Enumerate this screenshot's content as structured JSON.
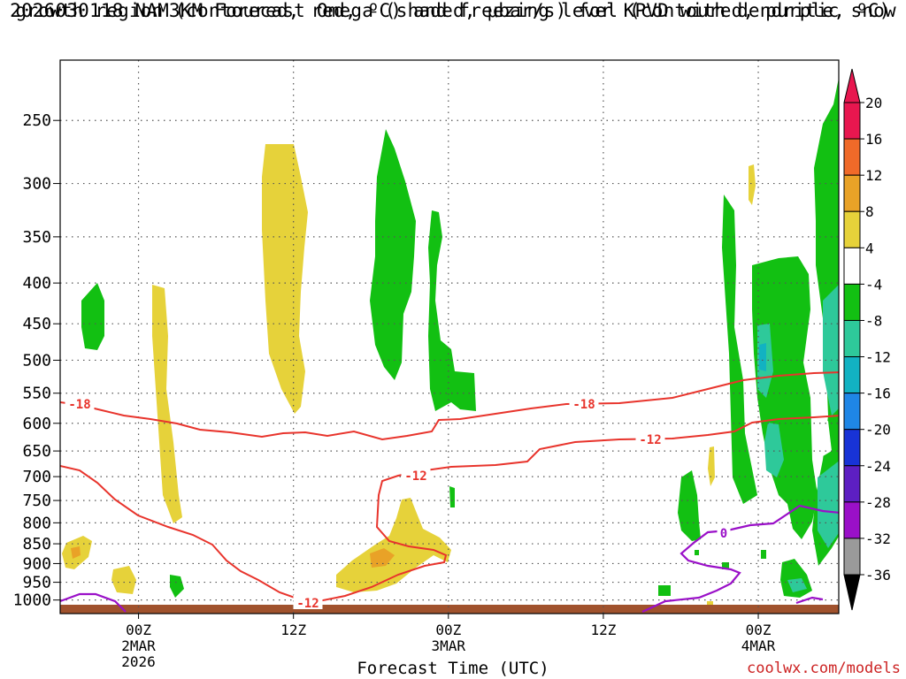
{
  "title_line1": "2026030118 NAM3KM Forecast Omega (shaded, μbar/s) for KPVD with dendritic snow",
  "title_line2": "growth region (contoured, red, ºC) and freezing level (contoured, purple, ºC)",
  "credit": "coolwx.com/models",
  "chart_data": {
    "type": "heatmap",
    "title": "2026030118 NAM3KM Forecast Omega (shaded, μbar/s) for KPVD with dendritic snow growth region (contoured, red, ºC) and freezing level (contoured, purple, ºC)",
    "xlabel": "Forecast Time (UTC)",
    "ylabel": "",
    "y_axis_scale": "log-pressure (inverted)",
    "y_ticks": [
      250,
      300,
      350,
      400,
      450,
      500,
      550,
      600,
      650,
      700,
      750,
      800,
      850,
      900,
      950,
      1000
    ],
    "x_ticks": [
      {
        "hour": 6,
        "label": "00Z",
        "sub1": "2MAR",
        "sub2": "2026"
      },
      {
        "hour": 18,
        "label": "12Z",
        "sub1": "",
        "sub2": ""
      },
      {
        "hour": 30,
        "label": "00Z",
        "sub1": "3MAR",
        "sub2": ""
      },
      {
        "hour": 42,
        "label": "12Z",
        "sub1": "",
        "sub2": ""
      },
      {
        "hour": 54,
        "label": "00Z",
        "sub1": "4MAR",
        "sub2": ""
      }
    ],
    "x_range_forecast_hours": [
      0,
      60
    ],
    "grid": "dotted",
    "colorbar": {
      "levels": [
        "20",
        "16",
        "12",
        "8",
        "4",
        "-4",
        "-8",
        "-12",
        "-16",
        "-20",
        "-24",
        "-28",
        "-32",
        "-36"
      ],
      "colors": [
        "#e8174f",
        "#f06a29",
        "#e9a227",
        "#e6d23a",
        "#ffffff",
        "#12c012",
        "#2ec99a",
        "#12b2c2",
        "#1f86e6",
        "#1833d6",
        "#5d1fc2",
        "#9a10c8",
        "#9a9a9a",
        "#000000"
      ]
    },
    "contour_labels": [
      {
        "text": "-18",
        "color": "#e8342c"
      },
      {
        "text": "-18",
        "color": "#e8342c"
      },
      {
        "text": "-12",
        "color": "#e8342c"
      },
      {
        "text": "-12",
        "color": "#e8342c"
      },
      {
        "text": "-12",
        "color": "#e8342c"
      },
      {
        "text": "0",
        "color": "#9a10c8"
      }
    ],
    "surface_color": "#a0522d"
  }
}
